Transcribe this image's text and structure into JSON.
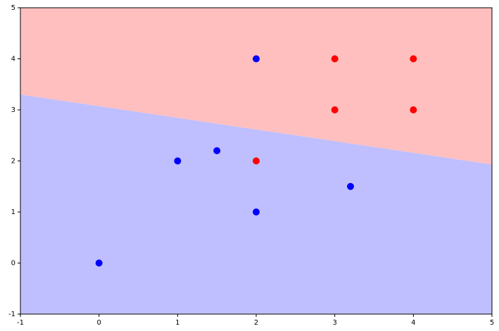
{
  "chart_data": {
    "type": "scatter",
    "xlim": [
      -1,
      5
    ],
    "ylim": [
      -1,
      5
    ],
    "xticks": [
      -1,
      0,
      1,
      2,
      3,
      4,
      5
    ],
    "yticks": [
      -1,
      0,
      1,
      2,
      3,
      4,
      5
    ],
    "decision_boundary": {
      "x": [
        -1,
        5
      ],
      "y": [
        3.3,
        1.93
      ]
    },
    "region_colors": {
      "above": "#ffbfbf",
      "below": "#bfbfff"
    },
    "series": [
      {
        "color": "#0000ff",
        "x": [
          0,
          1,
          1.5,
          2,
          2,
          3.2
        ],
        "values": [
          0,
          2,
          2.2,
          1,
          4,
          1.5
        ]
      },
      {
        "color": "#ff0000",
        "x": [
          2,
          3,
          3,
          4,
          4
        ],
        "values": [
          2,
          3,
          4,
          3,
          4
        ]
      }
    ]
  }
}
